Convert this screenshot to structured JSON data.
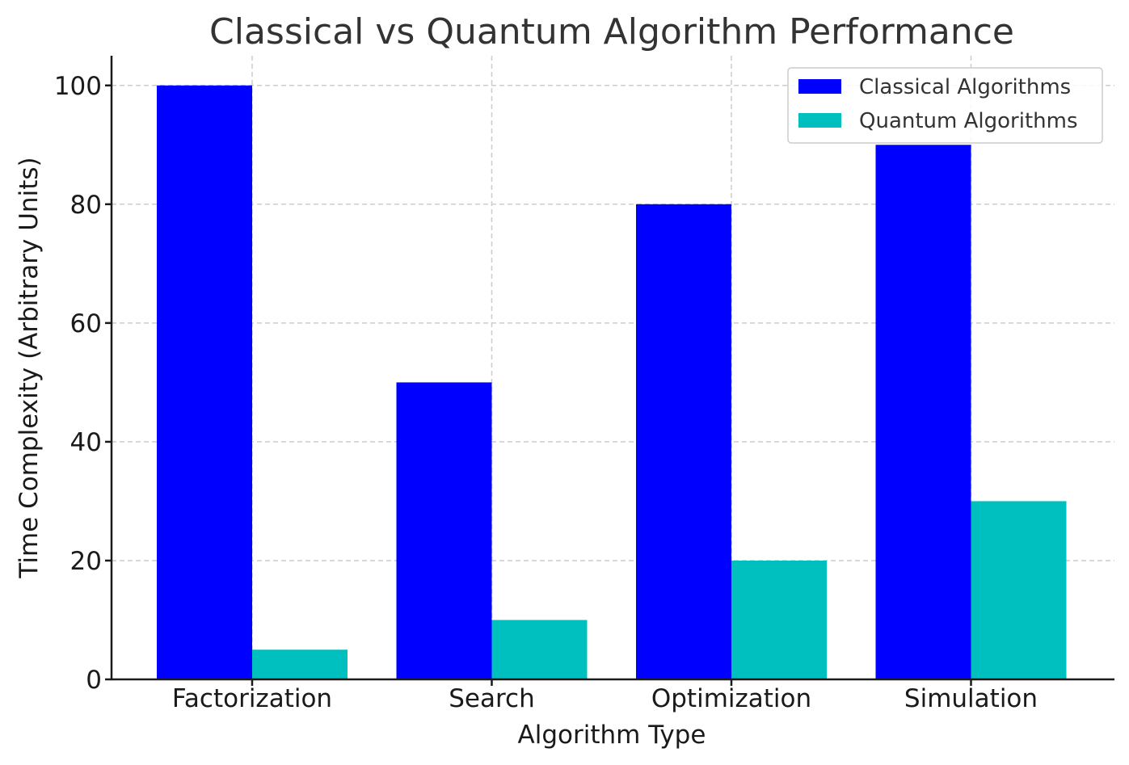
{
  "chart_data": {
    "type": "bar",
    "title": "Classical vs Quantum Algorithm Performance",
    "xlabel": "Algorithm Type",
    "ylabel": "Time Complexity (Arbitrary Units)",
    "categories": [
      "Factorization",
      "Search",
      "Optimization",
      "Simulation"
    ],
    "series": [
      {
        "name": "Classical Algorithms",
        "color": "#0000ff",
        "values": [
          100,
          50,
          80,
          90
        ]
      },
      {
        "name": "Quantum Algorithms",
        "color": "#00bfbf",
        "values": [
          5,
          10,
          20,
          30
        ]
      }
    ],
    "ylim": [
      0,
      105
    ],
    "yticks": [
      0,
      20,
      40,
      60,
      80,
      100
    ],
    "grid": true,
    "legend_position": "top-right"
  }
}
